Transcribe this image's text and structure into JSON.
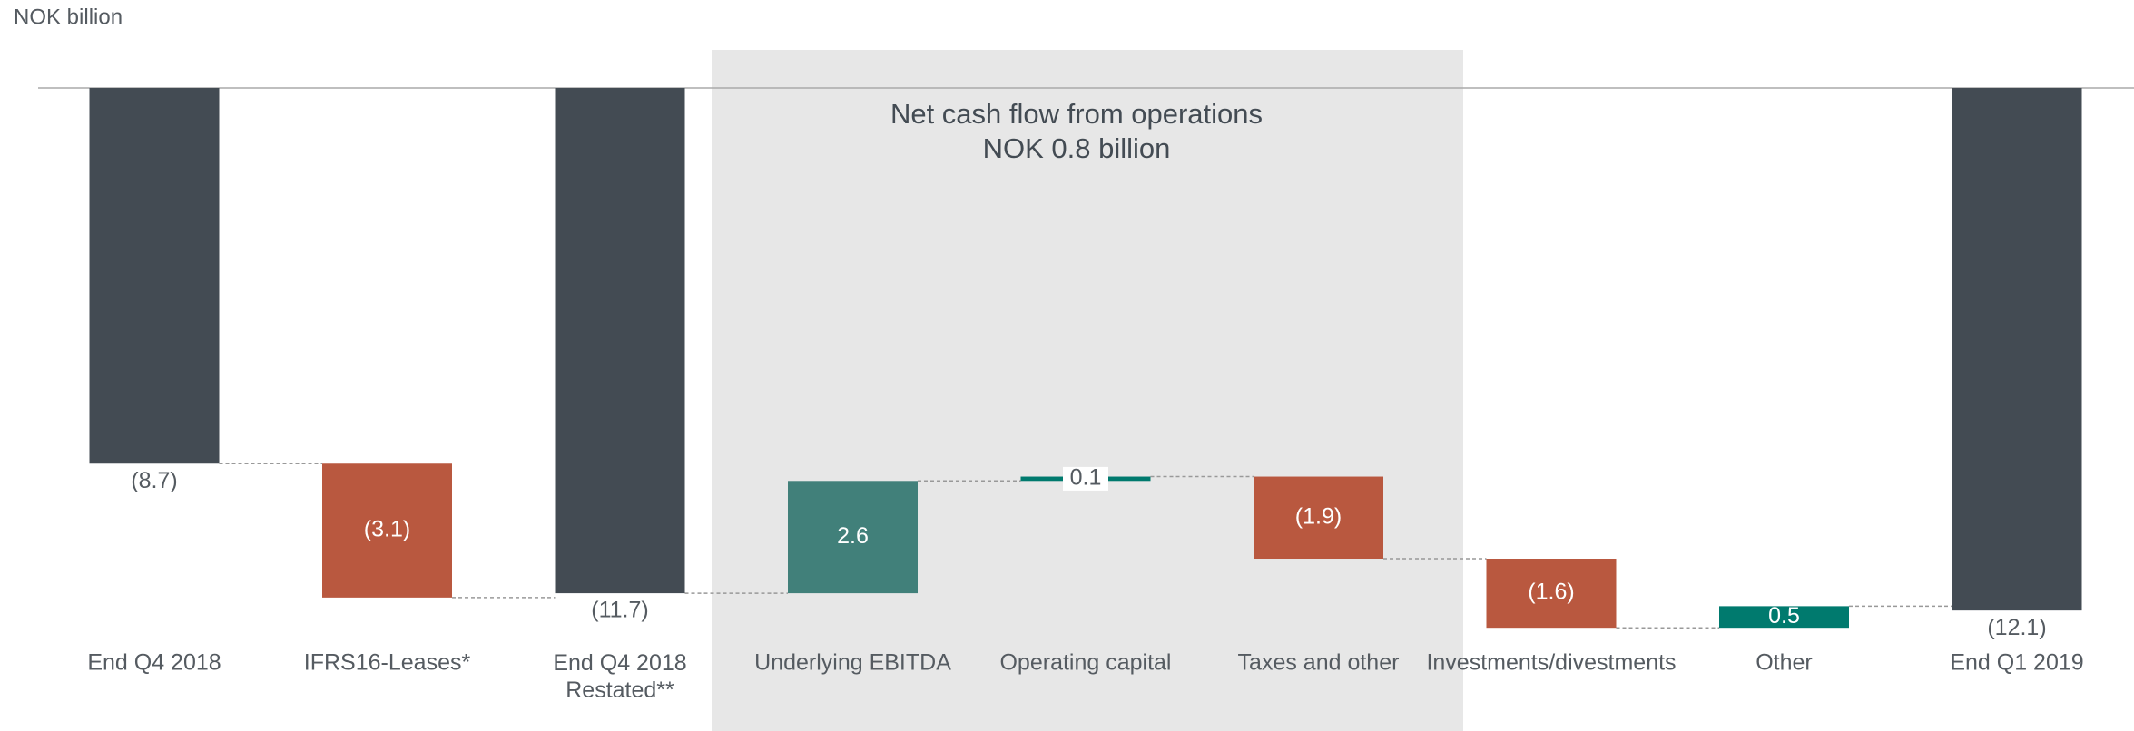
{
  "chart_data": {
    "type": "waterfall",
    "unit_label": "NOK billion",
    "annotation": [
      "Net cash flow from operations",
      "NOK 0.8 billion"
    ],
    "categories": [
      "End Q4 2018",
      "IFRS16-Leases*",
      "End Q4 2018\nRestated**",
      "Underlying EBITDA",
      "Operating capital",
      "Taxes and other",
      "Investments/divestments",
      "Other",
      "End Q1 2019"
    ],
    "values": [
      -8.7,
      -3.1,
      -11.7,
      2.6,
      0.1,
      -1.9,
      -1.6,
      0.5,
      -12.1
    ],
    "value_labels": [
      "(8.7)",
      "(3.1)",
      "(11.7)",
      "2.6",
      "0.1",
      "(1.9)",
      "(1.6)",
      "0.5",
      "(12.1)"
    ],
    "measures": [
      "total",
      "relative",
      "total",
      "relative",
      "relative",
      "relative",
      "relative",
      "relative",
      "total"
    ],
    "colors": [
      "#434b53",
      "#b9583f",
      "#434b53",
      "#41807a",
      "#007a6e",
      "#b9583f",
      "#b9583f",
      "#007a6e",
      "#434b53"
    ],
    "ylim": [
      -13,
      0
    ]
  }
}
